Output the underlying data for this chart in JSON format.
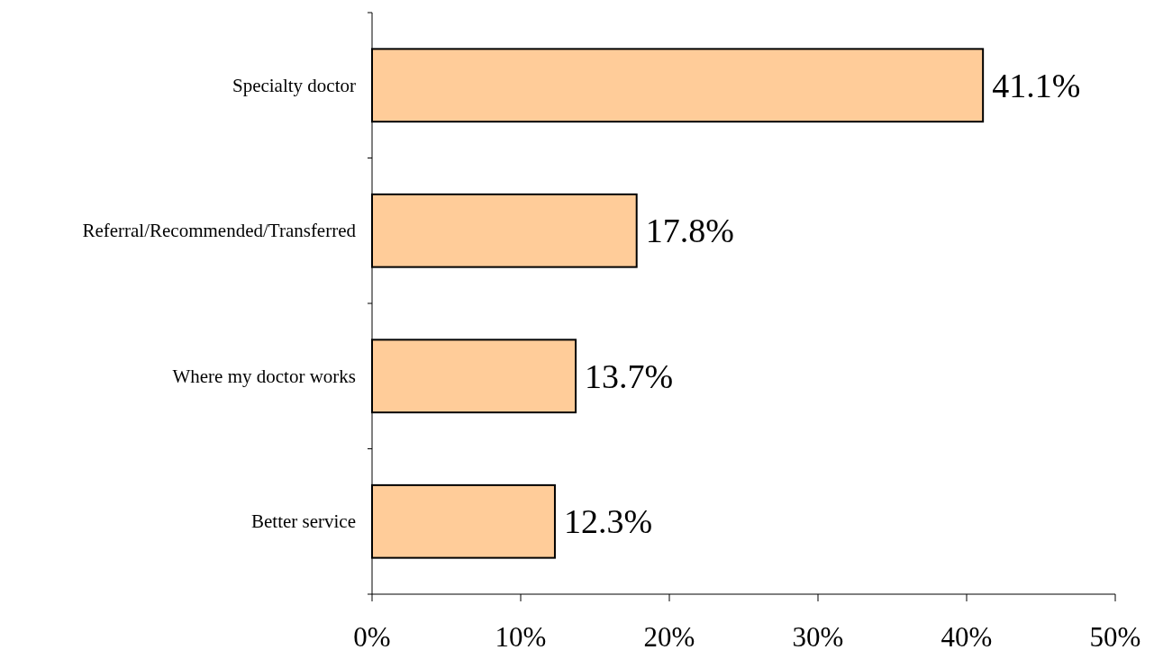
{
  "chart_data": {
    "type": "bar",
    "orientation": "horizontal",
    "categories": [
      "Specialty doctor",
      "Referral/Recommended/Transferred",
      "Where my doctor works",
      "Better service"
    ],
    "values": [
      41.1,
      17.8,
      13.7,
      12.3
    ],
    "value_labels": [
      "41.1%",
      "17.8%",
      "13.7%",
      "12.3%"
    ],
    "color": "#ffcc99",
    "xlim": [
      0,
      50
    ],
    "xticks": [
      {
        "value": 0,
        "label": "0%"
      },
      {
        "value": 10,
        "label": "10%"
      },
      {
        "value": 20,
        "label": "20%"
      },
      {
        "value": 30,
        "label": "30%"
      },
      {
        "value": 40,
        "label": "40%"
      },
      {
        "value": 50,
        "label": "50%"
      }
    ],
    "grid": false
  }
}
